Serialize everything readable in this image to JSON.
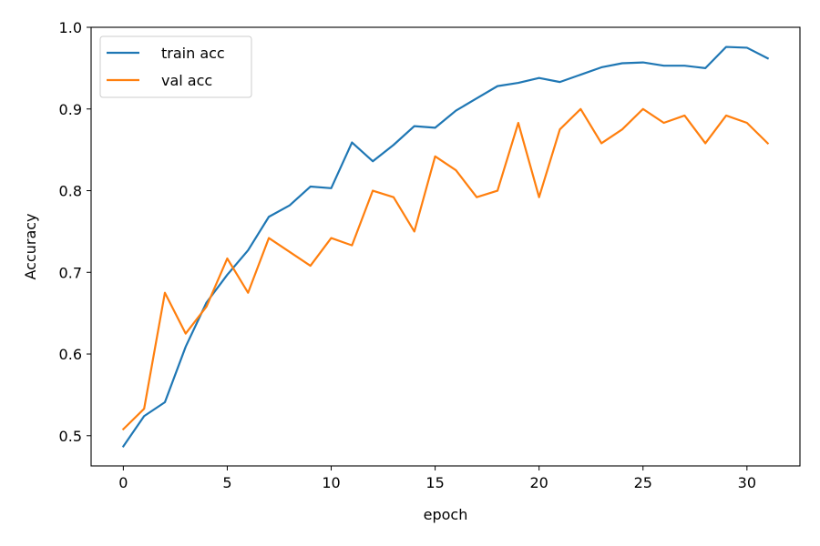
{
  "chart_data": {
    "type": "line",
    "xlabel": "epoch",
    "ylabel": "Accuracy",
    "xlim": [
      -1.55,
      32.55
    ],
    "ylim": [
      0.463,
      1.0
    ],
    "x_ticks": [
      0,
      5,
      10,
      15,
      20,
      25,
      30
    ],
    "y_ticks": [
      0.5,
      0.6,
      0.7,
      0.8,
      0.9,
      1.0
    ],
    "x_tick_labels": [
      "0",
      "5",
      "10",
      "15",
      "20",
      "25",
      "30"
    ],
    "y_tick_labels": [
      "0.5",
      "0.6",
      "0.7",
      "0.8",
      "0.9",
      "1.0"
    ],
    "grid": false,
    "legend_position": "upper left",
    "x": [
      0,
      1,
      2,
      3,
      4,
      5,
      6,
      7,
      8,
      9,
      10,
      11,
      12,
      13,
      14,
      15,
      16,
      17,
      18,
      19,
      20,
      21,
      22,
      23,
      24,
      25,
      26,
      27,
      28,
      29,
      30,
      31
    ],
    "series": [
      {
        "name": "train acc",
        "color": "#1f77b4",
        "values": [
          0.487,
          0.524,
          0.541,
          0.609,
          0.663,
          0.697,
          0.727,
          0.768,
          0.782,
          0.805,
          0.803,
          0.859,
          0.836,
          0.856,
          0.879,
          0.877,
          0.898,
          0.913,
          0.928,
          0.932,
          0.938,
          0.933,
          0.942,
          0.951,
          0.956,
          0.957,
          0.953,
          0.953,
          0.95,
          0.976,
          0.975,
          0.962
        ]
      },
      {
        "name": "val acc",
        "color": "#ff7f0e",
        "values": [
          0.508,
          0.533,
          0.675,
          0.625,
          0.658,
          0.717,
          0.675,
          0.742,
          0.725,
          0.708,
          0.742,
          0.733,
          0.8,
          0.792,
          0.75,
          0.842,
          0.825,
          0.792,
          0.8,
          0.883,
          0.792,
          0.875,
          0.9,
          0.858,
          0.875,
          0.9,
          0.883,
          0.892,
          0.858,
          0.892,
          0.883,
          0.858
        ]
      }
    ]
  }
}
